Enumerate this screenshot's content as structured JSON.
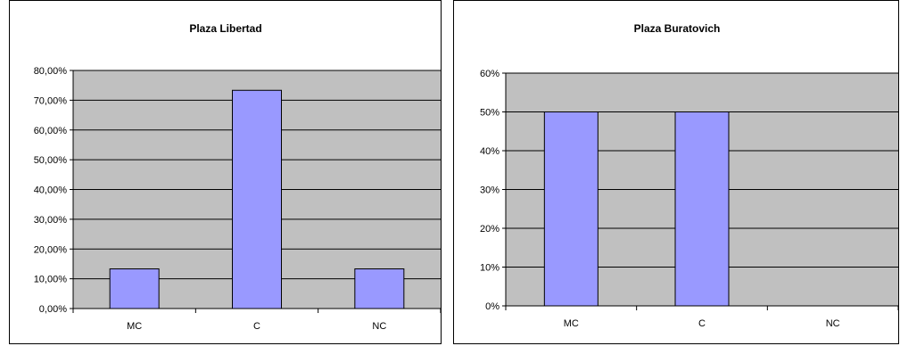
{
  "chart_data": [
    {
      "type": "bar",
      "title": "Plaza Libertad",
      "categories": [
        "MC",
        "C",
        "NC"
      ],
      "values": [
        13.33,
        73.33,
        13.33
      ],
      "ylim": [
        0,
        80
      ],
      "yticks": [
        0,
        10,
        20,
        30,
        40,
        50,
        60,
        70,
        80
      ],
      "ytick_labels": [
        "0,00%",
        "10,00%",
        "20,00%",
        "30,00%",
        "40,00%",
        "50,00%",
        "60,00%",
        "70,00%",
        "80,00%"
      ],
      "grid": true,
      "colors": {
        "bar": "#9999ff",
        "plot_bg": "#c0c0c0"
      }
    },
    {
      "type": "bar",
      "title": "Plaza Buratovich",
      "categories": [
        "MC",
        "C",
        "NC"
      ],
      "values": [
        50,
        50,
        0
      ],
      "ylim": [
        0,
        60
      ],
      "yticks": [
        0,
        10,
        20,
        30,
        40,
        50,
        60
      ],
      "ytick_labels": [
        "0%",
        "10%",
        "20%",
        "30%",
        "40%",
        "50%",
        "60%"
      ],
      "grid": true,
      "colors": {
        "bar": "#9999ff",
        "plot_bg": "#c0c0c0"
      }
    }
  ]
}
